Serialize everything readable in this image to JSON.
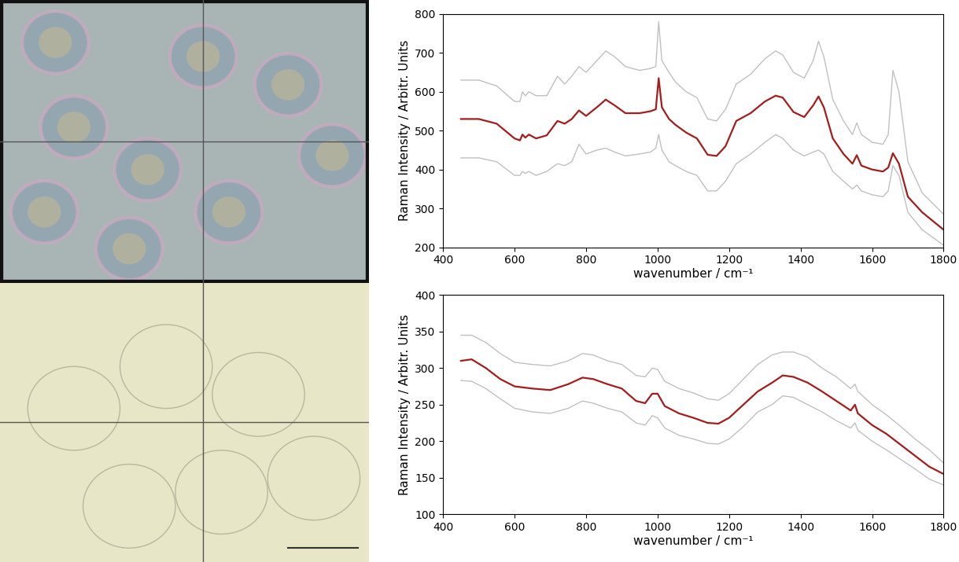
{
  "chart_data": [
    {
      "type": "line",
      "x_label": "wavenumber / cm⁻¹",
      "y_label": "Raman Intensity / Arbitr. Units",
      "x": [
        450,
        500,
        550,
        600,
        615,
        622,
        630,
        640,
        660,
        690,
        720,
        740,
        760,
        780,
        800,
        830,
        855,
        880,
        910,
        950,
        980,
        995,
        1003,
        1012,
        1032,
        1050,
        1080,
        1110,
        1140,
        1165,
        1190,
        1220,
        1260,
        1300,
        1330,
        1350,
        1380,
        1410,
        1435,
        1450,
        1465,
        1490,
        1520,
        1545,
        1557,
        1570,
        1600,
        1630,
        1645,
        1658,
        1675,
        1700,
        1740,
        1800
      ],
      "series": [
        {
          "color": "#c0c0c0",
          "line_style": "solid",
          "values": [
            630,
            630,
            615,
            575,
            575,
            600,
            590,
            600,
            590,
            590,
            640,
            620,
            640,
            665,
            650,
            680,
            705,
            690,
            665,
            655,
            660,
            665,
            780,
            680,
            650,
            625,
            600,
            585,
            530,
            525,
            555,
            620,
            645,
            685,
            705,
            695,
            650,
            635,
            680,
            730,
            690,
            580,
            525,
            490,
            520,
            490,
            470,
            465,
            490,
            655,
            600,
            420,
            340,
            285
          ]
        },
        {
          "color": "#a51c1c",
          "line_style": "solid",
          "values": [
            530,
            530,
            518,
            480,
            475,
            490,
            482,
            490,
            480,
            488,
            525,
            518,
            530,
            552,
            538,
            560,
            580,
            565,
            545,
            545,
            550,
            555,
            635,
            560,
            530,
            515,
            495,
            480,
            438,
            435,
            460,
            525,
            545,
            575,
            590,
            585,
            548,
            535,
            565,
            588,
            560,
            480,
            440,
            415,
            437,
            410,
            400,
            395,
            405,
            442,
            415,
            330,
            290,
            245
          ]
        },
        {
          "color": "#c0c0c0",
          "line_style": "solid",
          "values": [
            430,
            430,
            420,
            385,
            385,
            395,
            390,
            395,
            385,
            395,
            415,
            410,
            420,
            465,
            440,
            450,
            455,
            445,
            435,
            440,
            445,
            455,
            490,
            450,
            420,
            410,
            395,
            385,
            345,
            345,
            370,
            415,
            440,
            470,
            490,
            480,
            450,
            435,
            445,
            450,
            440,
            395,
            370,
            350,
            360,
            345,
            335,
            330,
            345,
            410,
            385,
            290,
            245,
            205
          ]
        }
      ],
      "xlim": [
        400,
        1800
      ],
      "xticks": [
        400,
        600,
        800,
        1000,
        1200,
        1400,
        1600,
        1800
      ],
      "ylim": [
        200,
        800
      ],
      "yticks": [
        200,
        300,
        400,
        500,
        600,
        700,
        800
      ]
    },
    {
      "type": "line",
      "x_label": "wavenumber / cm⁻¹",
      "y_label": "Raman Intensity / Arbitr. Units",
      "x": [
        450,
        480,
        520,
        560,
        600,
        650,
        700,
        750,
        790,
        820,
        860,
        900,
        940,
        965,
        985,
        1000,
        1020,
        1060,
        1100,
        1140,
        1170,
        1200,
        1240,
        1280,
        1320,
        1350,
        1380,
        1420,
        1460,
        1500,
        1540,
        1552,
        1560,
        1600,
        1640,
        1680,
        1720,
        1760,
        1800
      ],
      "series": [
        {
          "color": "#c0c0c0",
          "line_style": "solid",
          "values": [
            345,
            345,
            335,
            320,
            308,
            305,
            303,
            310,
            320,
            318,
            310,
            305,
            290,
            288,
            300,
            298,
            282,
            272,
            266,
            258,
            256,
            265,
            285,
            305,
            318,
            322,
            322,
            315,
            300,
            288,
            272,
            278,
            268,
            250,
            236,
            220,
            203,
            188,
            170
          ]
        },
        {
          "color": "#a51c1c",
          "line_style": "solid",
          "values": [
            310,
            312,
            300,
            285,
            275,
            272,
            270,
            278,
            287,
            285,
            278,
            272,
            255,
            252,
            265,
            265,
            248,
            238,
            232,
            225,
            224,
            232,
            250,
            268,
            280,
            290,
            288,
            280,
            268,
            255,
            242,
            250,
            238,
            222,
            210,
            195,
            180,
            165,
            155
          ]
        },
        {
          "color": "#c0c0c0",
          "line_style": "solid",
          "values": [
            283,
            282,
            272,
            258,
            245,
            240,
            238,
            245,
            255,
            252,
            245,
            240,
            225,
            222,
            235,
            232,
            218,
            208,
            203,
            197,
            196,
            203,
            220,
            240,
            250,
            262,
            260,
            250,
            240,
            228,
            218,
            225,
            215,
            200,
            188,
            175,
            162,
            148,
            140
          ]
        }
      ],
      "xlim": [
        400,
        1800
      ],
      "xticks": [
        400,
        600,
        800,
        1000,
        1200,
        1400,
        1600,
        1800
      ],
      "ylim": [
        100,
        400
      ],
      "yticks": [
        100,
        150,
        200,
        250,
        300,
        350,
        400
      ]
    }
  ]
}
